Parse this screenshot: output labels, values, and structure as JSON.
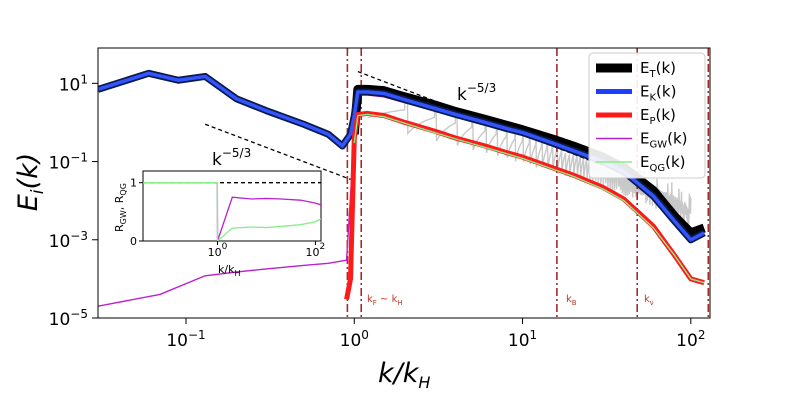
{
  "chart_data": {
    "type": "line",
    "xscale": "log",
    "yscale": "log",
    "xlim": [
      0.03,
      130
    ],
    "ylim": [
      1e-05,
      80
    ],
    "xlabel": "k/k_H",
    "ylabel": "E_i(k)",
    "xticks": [
      "10^{-1}",
      "10^{0}",
      "10^{1}",
      "10^{2}"
    ],
    "yticks": [
      "10^{1}",
      "10^{-1}",
      "10^{-3}",
      "10^{-5}"
    ],
    "legend_position": "top-right",
    "series": [
      {
        "name": "E_T(k)",
        "color": "#000000",
        "x": [
          1.0,
          1.05,
          1.2,
          1.5,
          2,
          3,
          4,
          6,
          8,
          10,
          15,
          20,
          30,
          40,
          60,
          80,
          100,
          120
        ],
        "y": [
          0.5,
          7,
          7,
          6.5,
          4.5,
          2.8,
          1.9,
          1.2,
          0.85,
          0.65,
          0.38,
          0.25,
          0.13,
          0.07,
          0.018,
          0.004,
          0.0015,
          0.002
        ]
      },
      {
        "name": "E_K(k)",
        "color": "#1f3fff",
        "x": [
          0.03,
          0.06,
          0.09,
          0.13,
          0.2,
          0.3,
          0.5,
          0.7,
          0.85,
          0.95,
          1.0,
          1.05,
          1.2,
          1.5,
          2,
          3,
          4,
          6,
          8,
          10,
          15,
          20,
          30,
          40,
          60,
          80,
          100,
          120
        ],
        "y": [
          7,
          18,
          12,
          15,
          4,
          2,
          0.9,
          0.5,
          0.25,
          0.5,
          1.5,
          6,
          6,
          5.5,
          3.8,
          2.3,
          1.6,
          1.0,
          0.7,
          0.55,
          0.3,
          0.19,
          0.1,
          0.055,
          0.013,
          0.003,
          0.001,
          0.0015
        ]
      },
      {
        "name": "E_P(k)",
        "color": "#ff1a1a",
        "x": [
          0.9,
          0.95,
          1.0,
          1.05,
          1.2,
          1.5,
          2,
          3,
          4,
          6,
          8,
          10,
          15,
          20,
          30,
          40,
          60,
          80,
          100,
          120
        ],
        "y": [
          3e-05,
          0.0001,
          0.4,
          1.6,
          1.7,
          1.5,
          1.0,
          0.6,
          0.4,
          0.25,
          0.17,
          0.13,
          0.07,
          0.045,
          0.022,
          0.011,
          0.0022,
          0.0004,
          0.0001,
          8e-05
        ]
      },
      {
        "name": "E_GW(k)",
        "color": "#bb22cc",
        "x": [
          0.03,
          0.07,
          0.13,
          0.2,
          0.3,
          0.5,
          0.7,
          0.9,
          1.0,
          1.05,
          1.2,
          1.5,
          2,
          3,
          4,
          6,
          8,
          10,
          15,
          20,
          30,
          40,
          60,
          80,
          100,
          120
        ],
        "y": [
          2e-05,
          4e-05,
          0.00012,
          0.00015,
          0.00018,
          0.00022,
          0.00025,
          0.0003,
          0.5,
          5,
          5,
          4.5,
          3.2,
          2.0,
          1.4,
          0.9,
          0.62,
          0.48,
          0.27,
          0.17,
          0.09,
          0.05,
          0.012,
          0.0028,
          0.001,
          0.0014
        ]
      },
      {
        "name": "E_QG(k)",
        "color": "#88ee88",
        "x": [
          1.0,
          1.05,
          1.2,
          1.5,
          2,
          3,
          4,
          6,
          8,
          10,
          15,
          20,
          30,
          40,
          60,
          80,
          100,
          120
        ],
        "y": [
          0.3,
          1.5,
          1.6,
          1.4,
          0.95,
          0.55,
          0.38,
          0.23,
          0.16,
          0.12,
          0.065,
          0.042,
          0.02,
          0.01,
          0.002,
          0.0004,
          0.0001,
          8e-05
        ]
      }
    ],
    "reference_lines": [
      {
        "label": "k^{-5/3}",
        "x": [
          0.13,
          0.95
        ],
        "y": [
          0.9,
          0.035
        ]
      },
      {
        "label": "k^{-5/3}",
        "x": [
          1.05,
          40
        ],
        "y": [
          20,
          0.05
        ]
      }
    ],
    "vertical_lines": [
      {
        "x": 0.91,
        "label": ""
      },
      {
        "x": 1.1,
        "label": "k_F ~ k_H"
      },
      {
        "x": 16,
        "label": "k_B"
      },
      {
        "x": 48,
        "label": "k_ν"
      },
      {
        "x": 127,
        "label": ""
      }
    ],
    "inset": {
      "xscale": "log",
      "xlim": [
        0.03,
        130
      ],
      "ylim": [
        0,
        1.2
      ],
      "xlabel": "k/k_H",
      "ylabel": "R_GW, R_QG",
      "xticks": [
        "10^{0}",
        "10^{2}"
      ],
      "yticks": [
        "0",
        "1"
      ],
      "series": [
        {
          "name": "R_GW",
          "color": "#bb22cc",
          "x": [
            0.03,
            0.5,
            0.99,
            1.0,
            2,
            5,
            10,
            20,
            50,
            100,
            130
          ],
          "y": [
            1.0,
            1.0,
            1.0,
            0.0,
            0.75,
            0.72,
            0.73,
            0.72,
            0.7,
            0.65,
            0.62
          ]
        },
        {
          "name": "R_QG",
          "color": "#88ee88",
          "x": [
            0.03,
            0.5,
            0.99,
            1.0,
            2,
            5,
            10,
            20,
            50,
            100,
            130
          ],
          "y": [
            1.0,
            1.0,
            1.0,
            0.0,
            0.22,
            0.24,
            0.23,
            0.25,
            0.28,
            0.33,
            0.38
          ]
        }
      ]
    }
  }
}
